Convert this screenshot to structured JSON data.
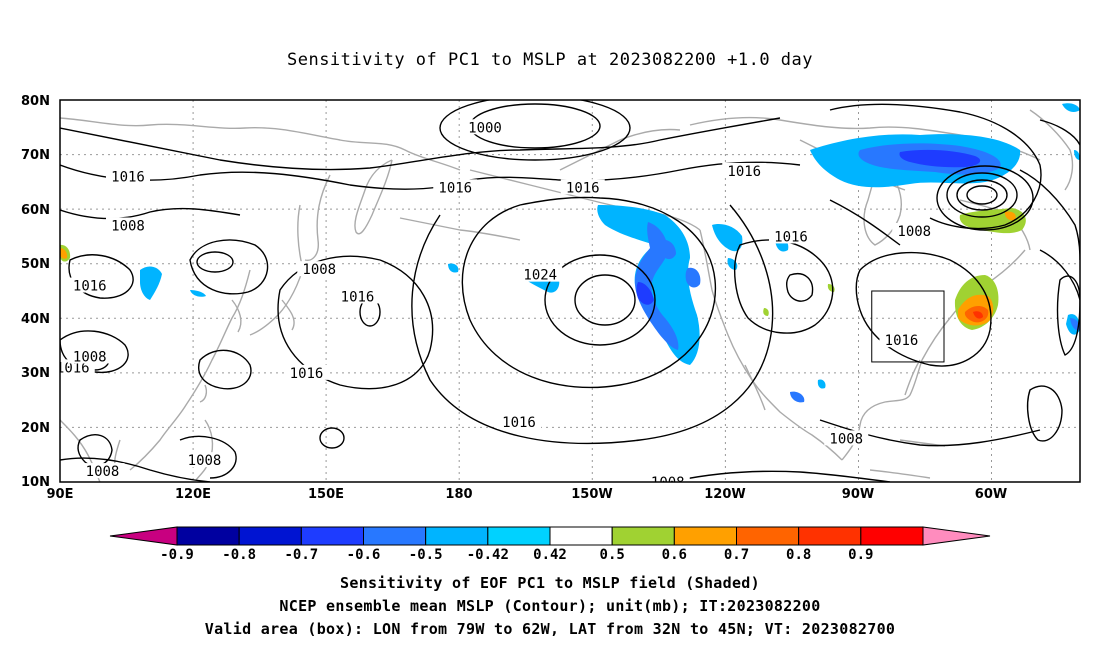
{
  "title": "Sensitivity of PC1 to MSLP at 2023082200 +1.0 day",
  "map": {
    "lat_labels": [
      "80N",
      "70N",
      "60N",
      "50N",
      "40N",
      "30N",
      "20N",
      "10N"
    ],
    "lon_labels": [
      "90E",
      "120E",
      "150E",
      "180",
      "150W",
      "120W",
      "90W",
      "60W"
    ],
    "contour_labels": [
      {
        "text": "1000",
        "lon": 190,
        "lat": 75
      },
      {
        "text": "1016",
        "lon": 106,
        "lat": 66
      },
      {
        "text": "1016",
        "lon": 183,
        "lat": 64
      },
      {
        "text": "1016",
        "lon": 213,
        "lat": 64
      },
      {
        "text": "1016",
        "lon": 251,
        "lat": 67
      },
      {
        "text": "1008",
        "lon": 106,
        "lat": 57
      },
      {
        "text": "1008",
        "lon": 151,
        "lat": 49
      },
      {
        "text": "1016",
        "lon": 97,
        "lat": 46
      },
      {
        "text": "1016",
        "lon": 160,
        "lat": 44
      },
      {
        "text": "1024",
        "lon": 203,
        "lat": 48
      },
      {
        "text": "1016",
        "lon": 262,
        "lat": 55
      },
      {
        "text": "1008",
        "lon": 291,
        "lat": 56
      },
      {
        "text": "1016",
        "lon": 288,
        "lat": 36
      },
      {
        "text": "1016",
        "lon": 93,
        "lat": 31
      },
      {
        "text": "1008",
        "lon": 97,
        "lat": 33
      },
      {
        "text": "1016",
        "lon": 148,
        "lat": 30
      },
      {
        "text": "1016",
        "lon": 198,
        "lat": 21
      },
      {
        "text": "1008",
        "lon": 275,
        "lat": 18
      },
      {
        "text": "1008",
        "lon": 100,
        "lat": 12
      },
      {
        "text": "1008",
        "lon": 124,
        "lat": 14
      },
      {
        "text": "1008",
        "lon": 233,
        "lat": 10
      }
    ],
    "valid_box": {
      "lon_min": 281,
      "lon_max": 298,
      "lat_min": 32,
      "lat_max": 45
    }
  },
  "colorbar": {
    "labels": [
      "-0.9",
      "-0.8",
      "-0.7",
      "-0.6",
      "-0.5",
      "-0.42",
      "0.42",
      "0.5",
      "0.6",
      "0.7",
      "0.8",
      "0.9"
    ],
    "colors": [
      "#c80080",
      "#0000a0",
      "#0014d2",
      "#1e3cff",
      "#2878ff",
      "#00b4ff",
      "#00d2ff",
      "#ffffff",
      "#a0d232",
      "#ffa000",
      "#ff6400",
      "#ff3200",
      "#ff0000",
      "#ff8cbe"
    ]
  },
  "footer": {
    "line1": "Sensitivity of EOF PC1 to MSLP field (Shaded)",
    "line2": "NCEP ensemble mean MSLP (Contour); unit(mb); IT:2023082200",
    "line3": "Valid area (box): LON from 79W to 62W, LAT from 32N to 45N; VT: 2023082700"
  }
}
